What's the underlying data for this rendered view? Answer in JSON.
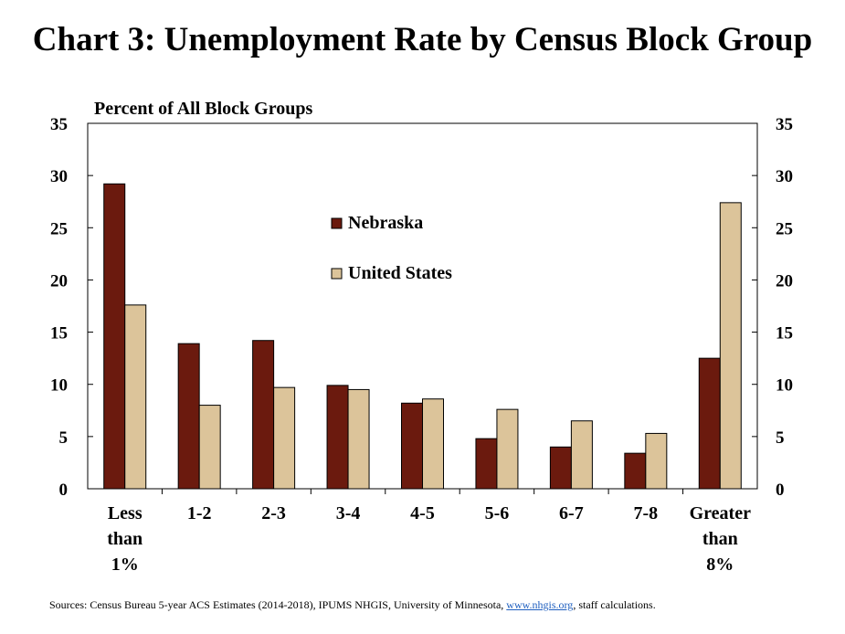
{
  "title": "Chart 3: Unemployment Rate by Census Block Group",
  "sources": {
    "prefix": "Sources: Census Bureau 5-year ACS Estimates (2014-2018), IPUMS NHGIS, University of Minnesota, ",
    "link_text": "www.nhgis.org",
    "suffix": ", staff calculations."
  },
  "chart_data": {
    "type": "bar",
    "ylabel": "Percent of All Block Groups",
    "xlabel": "",
    "ylim": [
      0,
      35
    ],
    "y_ticks": [
      "0",
      "5",
      "10",
      "15",
      "20",
      "25",
      "30",
      "35"
    ],
    "categories": [
      [
        "Less",
        "than",
        "1%"
      ],
      [
        "1-2"
      ],
      [
        "2-3"
      ],
      [
        "3-4"
      ],
      [
        "4-5"
      ],
      [
        "5-6"
      ],
      [
        "6-7"
      ],
      [
        "7-8"
      ],
      [
        "Greater",
        "than",
        "8%"
      ]
    ],
    "series": [
      {
        "name": "Nebraska",
        "color": "#6b1a0e",
        "values": [
          29.2,
          13.9,
          14.2,
          9.9,
          8.2,
          4.8,
          4.0,
          3.4,
          12.5
        ]
      },
      {
        "name": "United States",
        "color": "#dcc49a",
        "values": [
          17.6,
          8.0,
          9.7,
          9.5,
          8.6,
          7.6,
          6.5,
          5.3,
          27.4
        ]
      }
    ],
    "legend_position": "upper-center",
    "secondary_y_axis": true
  }
}
